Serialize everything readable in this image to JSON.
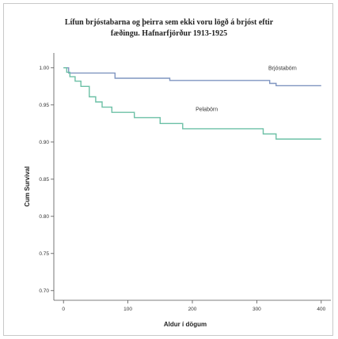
{
  "chart_data": {
    "type": "line",
    "title_lines": [
      "Lífun brjóstabarna og þeirra sem ekki voru lögð á brjóst eftir",
      "fæðingu. Hafnarfjörður 1913-1925"
    ],
    "xlabel": "Aldur í dögum",
    "ylabel": "Cum Survival",
    "xlim": [
      -15,
      415
    ],
    "ylim": [
      0.687,
      1.02
    ],
    "x_ticks": [
      0,
      100,
      200,
      300,
      400
    ],
    "y_ticks": [
      1.0,
      0.95,
      0.9,
      0.85,
      0.8,
      0.75,
      0.7
    ],
    "y_tick_labels": [
      "1.00",
      "0.95",
      "0.90",
      "0.85",
      "0.80",
      "0.75",
      "0.70"
    ],
    "grid": false,
    "series": [
      {
        "name": "Brjóstabörn",
        "color": "#7f95c0",
        "x": [
          0,
          8,
          25,
          80,
          165,
          215,
          320,
          330,
          400
        ],
        "y": [
          1.0,
          0.993,
          0.993,
          0.986,
          0.983,
          0.983,
          0.979,
          0.976,
          0.976
        ]
      },
      {
        "name": "Pelabörn",
        "color": "#6cc0a6",
        "x": [
          0,
          5,
          10,
          18,
          27,
          40,
          50,
          60,
          75,
          110,
          150,
          185,
          240,
          275,
          310,
          330,
          400
        ],
        "y": [
          1.0,
          0.994,
          0.988,
          0.982,
          0.975,
          0.961,
          0.954,
          0.947,
          0.94,
          0.933,
          0.925,
          0.918,
          0.918,
          0.918,
          0.911,
          0.904,
          0.904
        ]
      }
    ]
  }
}
